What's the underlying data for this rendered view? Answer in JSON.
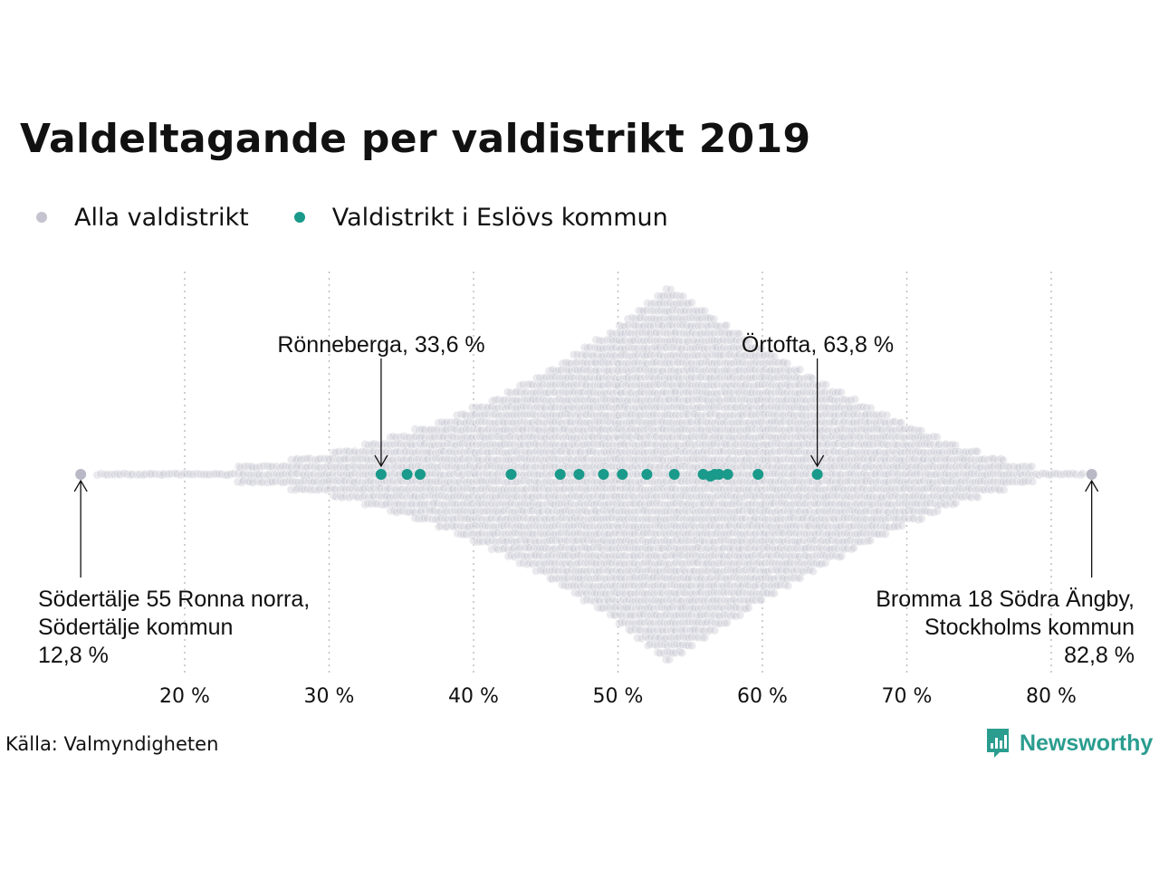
{
  "title": "Valdeltagande per valdistrikt 2019",
  "legend": {
    "all_label": "Alla valdistrikt",
    "eslov_label": "Valdistrikt i Eslövs kommun"
  },
  "source": "Källa: Valmyndigheten",
  "brand": "Newsworthy",
  "colors": {
    "all": "#c4c3cf",
    "eslov": "#1a9a8a",
    "grid": "#bbbbbb",
    "brand": "#2a9d8f"
  },
  "chart_data": {
    "type": "scatter",
    "subtype": "beeswarm",
    "title": "Valdeltagande per valdistrikt 2019",
    "x_axis": {
      "range": [
        12,
        84
      ],
      "ticks": [
        20,
        30,
        40,
        50,
        60,
        70,
        80
      ],
      "tick_labels": [
        "20 %",
        "30 %",
        "40 %",
        "50 %",
        "60 %",
        "70 %",
        "80 %"
      ],
      "grid": "vertical dotted"
    },
    "distribution_all": {
      "description_series": "Alla valdistrikt",
      "min": 12.8,
      "max": 82.8,
      "peak": 53.7
    },
    "series": [
      {
        "name": "Alla valdistrikt",
        "highlighted": [
          12.8,
          82.8
        ]
      },
      {
        "name": "Valdistrikt i Eslövs kommun",
        "values": [
          33.6,
          35.4,
          36.3,
          42.6,
          46.0,
          47.3,
          49.0,
          50.3,
          52.0,
          53.9,
          55.9,
          56.4,
          56.7,
          57.0,
          57.6,
          59.7,
          63.8
        ]
      }
    ],
    "annotations": [
      {
        "text": "Rönneberga, 33,6 %",
        "x": 33.6
      },
      {
        "text": "Örtofta, 63,8 %",
        "x": 63.8
      },
      {
        "lines": [
          "Södertälje 55 Ronna norra,",
          "Södertälje kommun",
          "12,8 %"
        ],
        "x": 12.8
      },
      {
        "lines": [
          "Bromma 18 Södra Ängby,",
          "Stockholms kommun",
          "82,8 %"
        ],
        "x": 82.8
      }
    ]
  }
}
